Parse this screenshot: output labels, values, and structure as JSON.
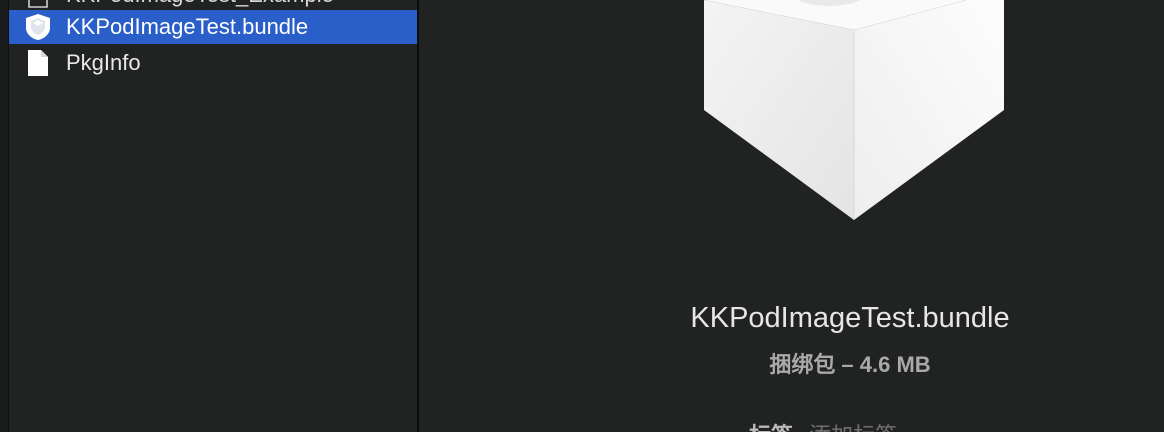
{
  "files": {
    "partial_item": {
      "label": "KKPodImageTest_Example",
      "icon": "document-icon"
    },
    "items": [
      {
        "label": "KKPodImageTest.bundle",
        "icon": "bundle-icon",
        "selected": true
      },
      {
        "label": "PkgInfo",
        "icon": "document-icon",
        "selected": false
      }
    ]
  },
  "preview": {
    "icon": "bundle-icon",
    "name": "KKPodImageTest.bundle",
    "meta": "捆绑包 – 4.6 MB",
    "tags_label": "标签",
    "tags_placeholder": "添加标签…"
  },
  "colors": {
    "selection": "#2a5ec8",
    "background": "#202322",
    "text_primary": "#e6e6e6",
    "text_secondary": "#a9a9a9"
  }
}
